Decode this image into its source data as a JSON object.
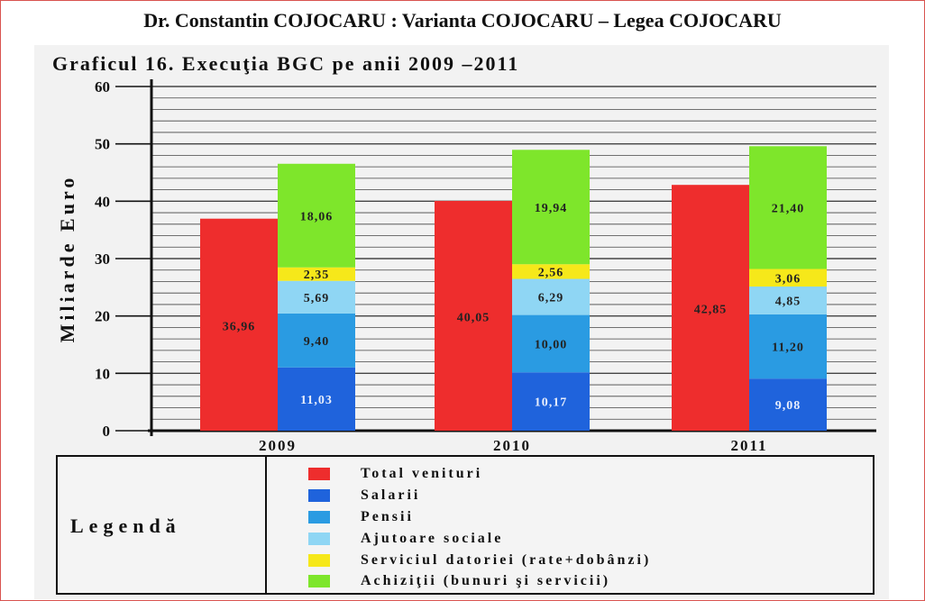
{
  "header": {
    "title": "Dr. Constantin COJOCARU : Varianta COJOCARU – Legea COJOCARU"
  },
  "legend": {
    "heading": "Legendă",
    "items": [
      {
        "label": "Total venituri",
        "color": "#ee2d2d"
      },
      {
        "label": "Salarii",
        "color": "#1f63dc"
      },
      {
        "label": "Pensii",
        "color": "#2a9be2"
      },
      {
        "label": "Ajutoare sociale",
        "color": "#8fd6f4"
      },
      {
        "label": "Serviciul datoriei (rate+dobânzi)",
        "color": "#f6e81a"
      },
      {
        "label": "Achiziţii (bunuri şi servicii)",
        "color": "#7ee62b"
      }
    ]
  },
  "chart_data": {
    "type": "bar",
    "title": "Graficul 16. Execuţia BGC pe anii 2009 –2011",
    "ylabel": "Miliarde Euro",
    "xlabel": "",
    "ylim": [
      0,
      60
    ],
    "yticks": [
      "0",
      "10",
      "20",
      "30",
      "40",
      "50",
      "60"
    ],
    "grid": true,
    "categories": [
      "2009",
      "2010",
      "2011"
    ],
    "series": [
      {
        "name": "Total venituri",
        "values": [
          36.96,
          40.05,
          42.85
        ],
        "labels": [
          "36,96",
          "40,05",
          "42,85"
        ],
        "color": "#ee2d2d",
        "stack": "venituri"
      },
      {
        "name": "Salarii",
        "values": [
          11.03,
          10.17,
          9.08
        ],
        "labels": [
          "11,03",
          "10,17",
          "9,08"
        ],
        "color": "#1f63dc",
        "stack": "cheltuieli"
      },
      {
        "name": "Pensii",
        "values": [
          9.4,
          10.0,
          11.2
        ],
        "labels": [
          "9,40",
          "10,00",
          "11,20"
        ],
        "color": "#2a9be2",
        "stack": "cheltuieli"
      },
      {
        "name": "Ajutoare sociale",
        "values": [
          5.69,
          6.29,
          4.85
        ],
        "labels": [
          "5,69",
          "6,29",
          "4,85"
        ],
        "color": "#8fd6f4",
        "stack": "cheltuieli"
      },
      {
        "name": "Serviciul datoriei (rate+dobânzi)",
        "values": [
          2.35,
          2.56,
          3.06
        ],
        "labels": [
          "2,35",
          "2,56",
          "3,06"
        ],
        "color": "#f6e81a",
        "stack": "cheltuieli"
      },
      {
        "name": "Achiziţii (bunuri şi servicii)",
        "values": [
          18.06,
          19.94,
          21.4
        ],
        "labels": [
          "18,06",
          "19,94",
          "21,40"
        ],
        "color": "#7ee62b",
        "stack": "cheltuieli"
      }
    ]
  }
}
